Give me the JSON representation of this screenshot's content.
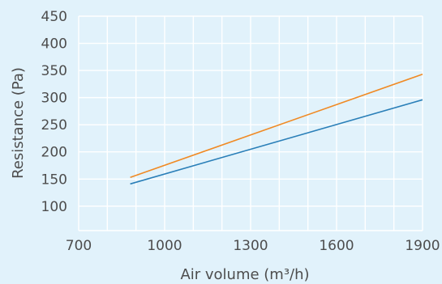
{
  "chart_data": {
    "type": "line",
    "title": "",
    "xlabel": "Air volume (m³/h)",
    "ylabel": "Resistance (Pa)",
    "xlim": [
      700,
      1900
    ],
    "ylim": [
      55,
      450
    ],
    "x_ticks": [
      "700",
      "1000",
      "1300",
      "1600",
      "1900"
    ],
    "y_ticks": [
      "100",
      "150",
      "200",
      "250",
      "300",
      "350",
      "400",
      "450"
    ],
    "x_ticks_values": [
      700,
      1000,
      1300,
      1600,
      1900
    ],
    "y_ticks_values": [
      100,
      150,
      200,
      250,
      300,
      350,
      400,
      450
    ],
    "grid": true,
    "legend": "none",
    "series": [
      {
        "color": "#f08a24",
        "x": [
          880,
          1900
        ],
        "y": [
          153,
          343
        ]
      },
      {
        "color": "#2a7fb8",
        "x": [
          880,
          1900
        ],
        "y": [
          141,
          296
        ]
      }
    ]
  },
  "colors": {
    "background": "#e1f2fb",
    "grid": "#ffffff",
    "text": "#4d4d4d"
  }
}
